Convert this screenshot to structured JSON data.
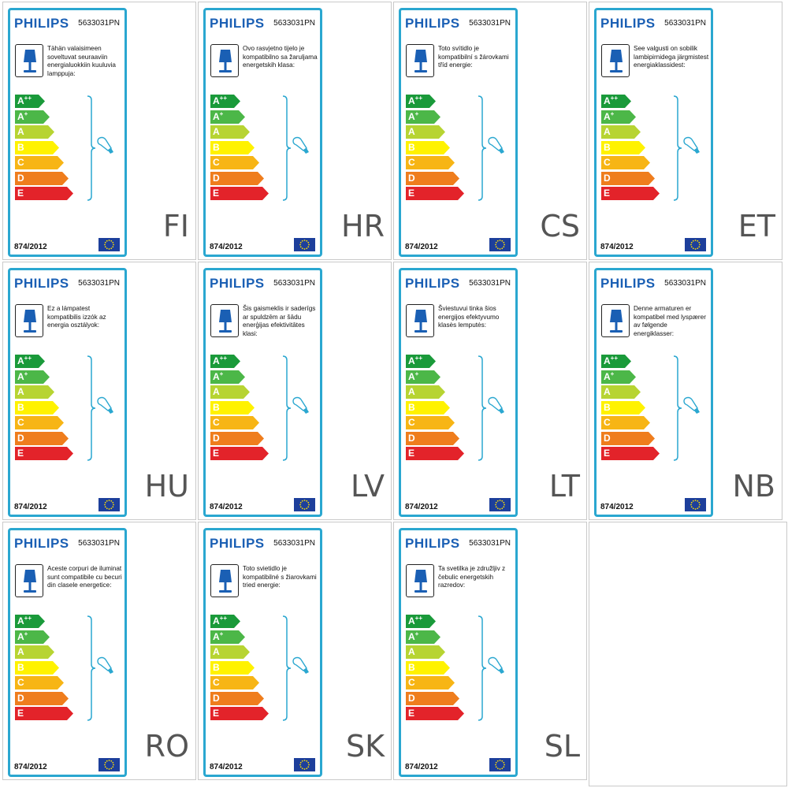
{
  "colors": {
    "frame": "#2aa7d0",
    "brand": "#1a5fb4",
    "classes": [
      "#1a9a3a",
      "#4cb748",
      "#b7d432",
      "#fff200",
      "#f7b515",
      "#ef7d1d",
      "#e3232a"
    ]
  },
  "icons": {
    "lamp": "table-lamp-icon",
    "bulb": "light-bulb-icon",
    "flag": "eu-flag-icon"
  },
  "classes": [
    {
      "letter": "A",
      "sup": "++"
    },
    {
      "letter": "A",
      "sup": "+"
    },
    {
      "letter": "A",
      "sup": ""
    },
    {
      "letter": "B",
      "sup": ""
    },
    {
      "letter": "C",
      "sup": ""
    },
    {
      "letter": "D",
      "sup": ""
    },
    {
      "letter": "E",
      "sup": ""
    }
  ],
  "labels": [
    {
      "brand": "PHILIPS",
      "model": "5633031PN",
      "regulation": "874/2012",
      "lang": "FI",
      "description": "Tähän valaisimeen soveltuvat seuraaviin energialuokkiin kuuluvia lamppuja:"
    },
    {
      "brand": "PHILIPS",
      "model": "5633031PN",
      "regulation": "874/2012",
      "lang": "HR",
      "description": "Ovo rasvjetno tijelo je kompatibilno sa žaruljama energetskih klasa:"
    },
    {
      "brand": "PHILIPS",
      "model": "5633031PN",
      "regulation": "874/2012",
      "lang": "CS",
      "description": "Toto svítidlo je kompatibilní s žárovkami tříd energie:"
    },
    {
      "brand": "PHILIPS",
      "model": "5633031PN",
      "regulation": "874/2012",
      "lang": "ET",
      "description": "See valgusti on sobilik lambipirnidega järgmistest energiaklassidest:"
    },
    {
      "brand": "PHILIPS",
      "model": "5633031PN",
      "regulation": "874/2012",
      "lang": "HU",
      "description": "Ez a lámpatest kompatibilis izzók az energia osztályok:"
    },
    {
      "brand": "PHILIPS",
      "model": "5633031PN",
      "regulation": "874/2012",
      "lang": "LV",
      "description": "Šis gaismeklis ir saderīgs ar spuldzēm ar šādu enerģijas efektivitātes klasi:"
    },
    {
      "brand": "PHILIPS",
      "model": "5633031PN",
      "regulation": "874/2012",
      "lang": "LT",
      "description": "Šviestuvui tinka šios energijos efektyvumo klasės lemputės:"
    },
    {
      "brand": "PHILIPS",
      "model": "5633031PN",
      "regulation": "874/2012",
      "lang": "NB",
      "description": "Denne armaturen er kompatibel med lyspærer av følgende energiklasser:"
    },
    {
      "brand": "PHILIPS",
      "model": "5633031PN",
      "regulation": "874/2012",
      "lang": "RO",
      "description": "Aceste corpuri de iluminat sunt compatibile cu becuri din clasele energetice:"
    },
    {
      "brand": "PHILIPS",
      "model": "5633031PN",
      "regulation": "874/2012",
      "lang": "SK",
      "description": "Toto svietidlo je kompatibilné s žiarovkami tried energie:"
    },
    {
      "brand": "PHILIPS",
      "model": "5633031PN",
      "regulation": "874/2012",
      "lang": "SL",
      "description": "Ta svetilka je združljiv z čebulic energetskih razredov:"
    }
  ]
}
